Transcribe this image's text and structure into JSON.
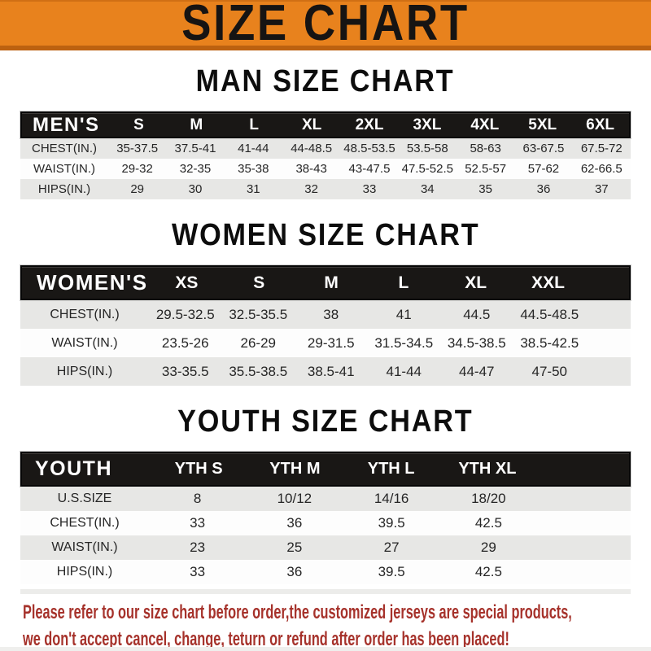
{
  "banner": {
    "title": "SIZE CHART"
  },
  "colors": {
    "banner_orange": "#E8821D",
    "banner_orange_dark": "#BC6110",
    "header_bar_black": "#191715",
    "row_shade_gray": "#E7E7E5",
    "note_red": "#A6322B"
  },
  "sections": [
    {
      "title": "MAN SIZE CHART",
      "corner_label": "MEN'S",
      "columns": [
        "S",
        "M",
        "L",
        "XL",
        "2XL",
        "3XL",
        "4XL",
        "5XL",
        "6XL"
      ],
      "rows": [
        {
          "label": "CHEST(IN.)",
          "values": [
            "35-37.5",
            "37.5-41",
            "41-44",
            "44-48.5",
            "48.5-53.5",
            "53.5-58",
            "58-63",
            "63-67.5",
            "67.5-72"
          ]
        },
        {
          "label": "WAIST(IN.)",
          "values": [
            "29-32",
            "32-35",
            "35-38",
            "38-43",
            "43-47.5",
            "47.5-52.5",
            "52.5-57",
            "57-62",
            "62-66.5"
          ]
        },
        {
          "label": "HIPS(IN.)",
          "values": [
            "29",
            "30",
            "31",
            "32",
            "33",
            "34",
            "35",
            "36",
            "37"
          ]
        }
      ]
    },
    {
      "title": "WOMEN SIZE CHART",
      "corner_label": "WOMEN'S",
      "columns": [
        "XS",
        "S",
        "M",
        "L",
        "XL",
        "XXL"
      ],
      "rows": [
        {
          "label": "CHEST(IN.)",
          "values": [
            "29.5-32.5",
            "32.5-35.5",
            "38",
            "41",
            "44.5",
            "44.5-48.5"
          ]
        },
        {
          "label": "WAIST(IN.)",
          "values": [
            "23.5-26",
            "26-29",
            "29-31.5",
            "31.5-34.5",
            "34.5-38.5",
            "38.5-42.5"
          ]
        },
        {
          "label": "HIPS(IN.)",
          "values": [
            "33-35.5",
            "35.5-38.5",
            "38.5-41",
            "41-44",
            "44-47",
            "47-50"
          ]
        }
      ]
    },
    {
      "title": "YOUTH SIZE CHART",
      "corner_label": "YOUTH",
      "columns": [
        "YTH S",
        "YTH M",
        "YTH L",
        "YTH XL"
      ],
      "rows": [
        {
          "label": "U.S.SIZE",
          "values": [
            "8",
            "10/12",
            "14/16",
            "18/20"
          ]
        },
        {
          "label": "CHEST(IN.)",
          "values": [
            "33",
            "36",
            "39.5",
            "42.5"
          ]
        },
        {
          "label": "WAIST(IN.)",
          "values": [
            "23",
            "25",
            "27",
            "29"
          ]
        },
        {
          "label": "HIPS(IN.)",
          "values": [
            "33",
            "36",
            "39.5",
            "42.5"
          ]
        }
      ]
    }
  ],
  "note": {
    "line1": "Please refer to our size chart before order,the customized jerseys are special products,",
    "line2": "we don't accept cancel, change, teturn or refund after order has been placed!"
  }
}
